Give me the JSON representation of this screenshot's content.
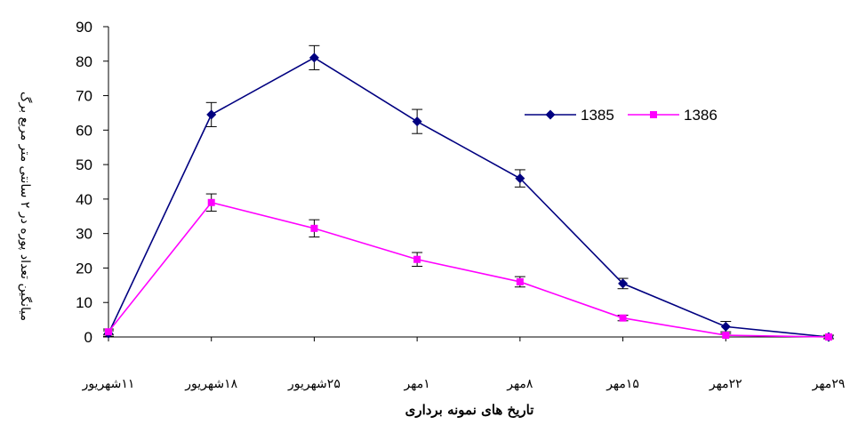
{
  "chart_data": {
    "type": "line",
    "categories": [
      "۱۱شهریور",
      "۱۸شهریور",
      "۲۵شهریور",
      "۱مهر",
      "۸مهر",
      "۱۵مهر",
      "۲۲مهر",
      "۲۹مهر"
    ],
    "series": [
      {
        "name": "1385",
        "color": "#000080",
        "marker": "diamond",
        "values": [
          1,
          64.5,
          81,
          62.5,
          46,
          15.5,
          3,
          0
        ],
        "error": [
          0.8,
          3.5,
          3.5,
          3.5,
          2.5,
          1.5,
          1.5,
          0.5
        ]
      },
      {
        "name": "1386",
        "color": "#FF00FF",
        "marker": "square",
        "values": [
          1.5,
          39,
          31.5,
          22.5,
          16,
          5.5,
          0.5,
          0
        ],
        "error": [
          0.8,
          2.5,
          2.5,
          2,
          1.5,
          0.8,
          0.5,
          0.5
        ]
      }
    ],
    "yticks": [
      0,
      10,
      20,
      30,
      40,
      50,
      60,
      70,
      80,
      90
    ],
    "ylim": [
      0,
      90
    ],
    "xlabel": "تاریخ های نمونه برداری",
    "ylabel": "میانگین تعداد پوره در ۲ سانتی متر مربع برگ",
    "legend_position": "top-right",
    "grid": false
  }
}
